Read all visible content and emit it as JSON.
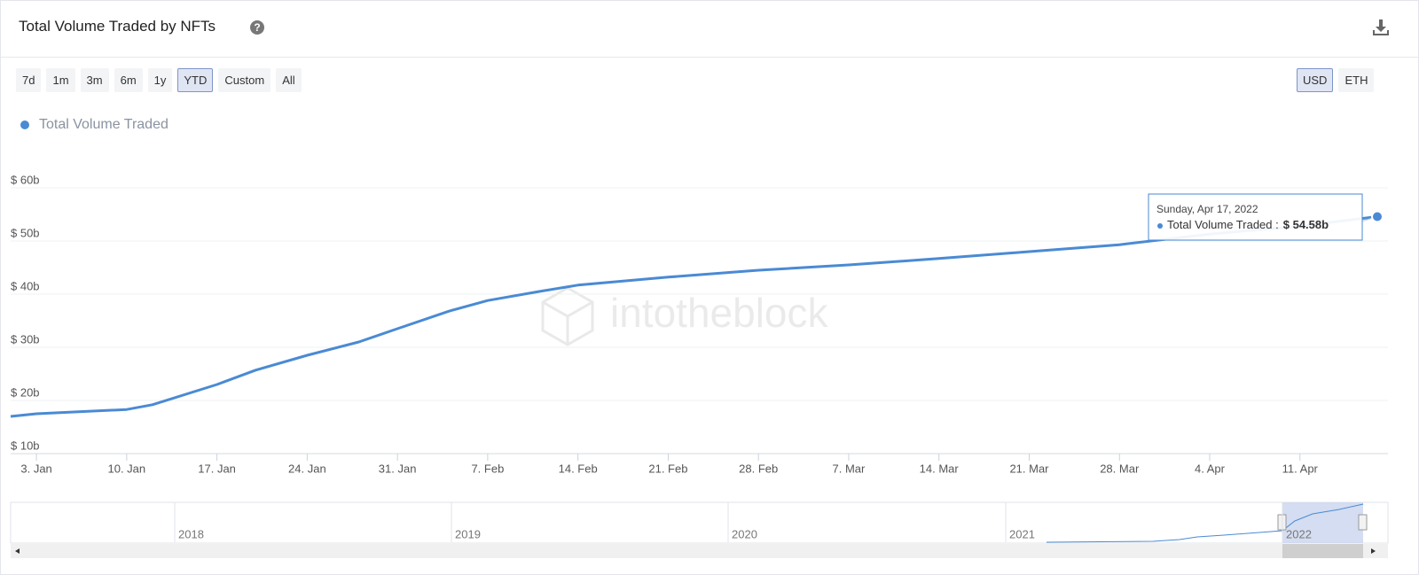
{
  "header": {
    "title": "Total Volume Traded by NFTs"
  },
  "range_buttons": [
    "7d",
    "1m",
    "3m",
    "6m",
    "1y",
    "YTD",
    "Custom",
    "All"
  ],
  "currency_buttons": [
    "USD",
    "ETH"
  ],
  "chart_data": {
    "type": "line",
    "x": [
      1,
      3,
      10,
      12,
      17,
      20,
      24,
      28,
      31,
      35,
      38,
      42,
      45,
      52,
      59,
      66,
      73,
      80,
      87,
      94,
      101,
      107
    ],
    "series": [
      {
        "name": "Total Volume Traded",
        "color": "#4a8ad4",
        "values": [
          17.0,
          17.5,
          18.3,
          19.2,
          23.0,
          25.7,
          28.5,
          31.0,
          33.5,
          36.8,
          38.8,
          40.5,
          41.7,
          43.2,
          44.5,
          45.5,
          46.7,
          48.0,
          49.3,
          51.3,
          52.8,
          54.58
        ]
      }
    ],
    "xlim": [
      1,
      107
    ],
    "xticks": [
      {
        "value": 3,
        "label": "3. Jan"
      },
      {
        "value": 10,
        "label": "10. Jan"
      },
      {
        "value": 17,
        "label": "17. Jan"
      },
      {
        "value": 24,
        "label": "24. Jan"
      },
      {
        "value": 31,
        "label": "31. Jan"
      },
      {
        "value": 38,
        "label": "7. Feb"
      },
      {
        "value": 45,
        "label": "14. Feb"
      },
      {
        "value": 52,
        "label": "21. Feb"
      },
      {
        "value": 59,
        "label": "28. Feb"
      },
      {
        "value": 66,
        "label": "7. Mar"
      },
      {
        "value": 73,
        "label": "14. Mar"
      },
      {
        "value": 80,
        "label": "21. Mar"
      },
      {
        "value": 87,
        "label": "28. Mar"
      },
      {
        "value": 94,
        "label": "4. Apr"
      },
      {
        "value": 101,
        "label": "11. Apr"
      }
    ],
    "ylim": [
      10,
      60
    ],
    "yticks": [
      {
        "value": 10,
        "label": "$ 10b"
      },
      {
        "value": 20,
        "label": "$ 20b"
      },
      {
        "value": 30,
        "label": "$ 30b"
      },
      {
        "value": 40,
        "label": "$ 40b"
      },
      {
        "value": 50,
        "label": "$ 50b"
      },
      {
        "value": 60,
        "label": "$ 60b"
      }
    ],
    "grid": true,
    "tooltip": {
      "date": "Sunday, Apr 17, 2022",
      "label": "Total Volume Traded :",
      "value_label": "$ 54.58b"
    },
    "watermark": "intotheblock"
  },
  "navigator": {
    "labels": [
      "2018",
      "2019",
      "2020",
      "2021",
      "2022"
    ]
  }
}
